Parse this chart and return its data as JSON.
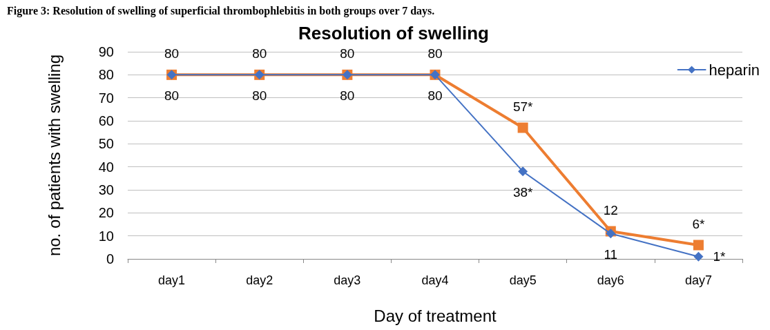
{
  "chart_data": {
    "type": "line",
    "title": "Resolution of swelling",
    "xlabel": "Day of treatment",
    "ylabel": "no. of patients with swelling",
    "annotations": [
      "Figure 3: Resolution of swelling of superficial thrombophlebitis in both groups over 7 days."
    ],
    "categories": [
      "day1",
      "day2",
      "day3",
      "day4",
      "day5",
      "day6",
      "day7"
    ],
    "series": [
      {
        "name": "heparin",
        "color": "#4472c4",
        "marker": "diamond",
        "values": [
          80,
          80,
          80,
          80,
          38,
          11,
          1
        ],
        "value_labels": [
          "80",
          "80",
          "80",
          "80",
          "38*",
          "11",
          "1*"
        ]
      },
      {
        "color": "#ed7d31",
        "marker": "square",
        "values": [
          80,
          80,
          80,
          80,
          57,
          12,
          6
        ],
        "value_labels": [
          "80",
          "80",
          "80",
          "80",
          "57*",
          "12",
          "6*"
        ]
      }
    ],
    "ylim": [
      0,
      90
    ],
    "yticks": [
      0,
      10,
      20,
      30,
      40,
      50,
      60,
      70,
      80,
      90
    ],
    "grid": "y",
    "legend": "right"
  }
}
